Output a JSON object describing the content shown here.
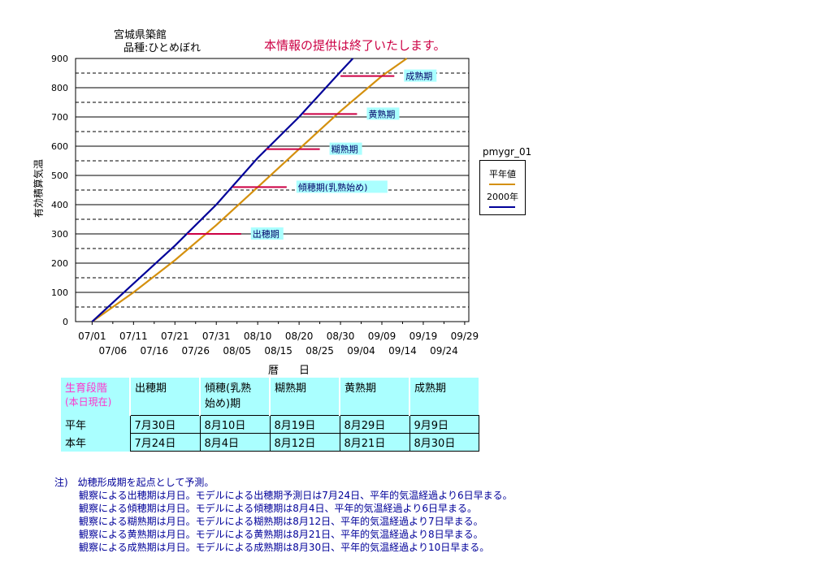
{
  "header": {
    "station": "宮城県築館",
    "variety": "品種:ひとめぼれ",
    "notice": "本情報の提供は終了いたします。"
  },
  "chart_data": {
    "type": "line",
    "title": "",
    "xlabel": "暦　日",
    "ylabel": "有効積算気温",
    "ylim": [
      0,
      900
    ],
    "yticks": [
      0,
      100,
      200,
      300,
      400,
      500,
      600,
      700,
      800,
      900
    ],
    "xlim": [
      "06/27",
      "09/30"
    ],
    "xticks_row1": [
      "07/01",
      "07/11",
      "07/21",
      "07/31",
      "08/10",
      "08/20",
      "08/30",
      "09/09",
      "09/19",
      "09/29"
    ],
    "xticks_row2": [
      "07/06",
      "07/16",
      "07/26",
      "08/05",
      "08/15",
      "08/25",
      "09/04",
      "09/14",
      "09/24"
    ],
    "grid": "dashed at 50, 150, 250, 350, 450, 550, 650, 750, 850; solid at 100s",
    "legend_title": "pmygr_01",
    "legend_position": "right",
    "series": [
      {
        "name": "平年値",
        "color": "#d4900e",
        "points": [
          [
            "07/01",
            0
          ],
          [
            "07/11",
            100
          ],
          [
            "07/21",
            210
          ],
          [
            "07/31",
            330
          ],
          [
            "08/10",
            460
          ],
          [
            "08/20",
            590
          ],
          [
            "08/30",
            720
          ],
          [
            "09/09",
            840
          ],
          [
            "09/15",
            900
          ]
        ]
      },
      {
        "name": "2000年",
        "color": "#000099",
        "points": [
          [
            "07/01",
            0
          ],
          [
            "07/11",
            130
          ],
          [
            "07/21",
            260
          ],
          [
            "07/31",
            400
          ],
          [
            "08/10",
            560
          ],
          [
            "08/20",
            700
          ],
          [
            "08/30",
            855
          ],
          [
            "09/02",
            900
          ]
        ]
      }
    ],
    "stage_markers": [
      {
        "label": "出穂期",
        "y": 300,
        "x_start": "07/24",
        "x_end": "08/06"
      },
      {
        "label": "傾穂期(乳熟始め)",
        "y": 460,
        "x_start": "08/04",
        "x_end": "08/17"
      },
      {
        "label": "糊熟期",
        "y": 590,
        "x_start": "08/12",
        "x_end": "08/25"
      },
      {
        "label": "黄熟期",
        "y": 710,
        "x_start": "08/21",
        "x_end": "09/03"
      },
      {
        "label": "成熟期",
        "y": 840,
        "x_start": "08/30",
        "x_end": "09/12"
      }
    ],
    "stage_label_bg": "#aaffff",
    "marker_color": "#cc0044"
  },
  "table": {
    "corner_line1": "生育段階",
    "corner_line2": "(本日現在)",
    "stages": [
      "出穂期",
      "傾穂(乳熟\n始め)期",
      "糊熟期",
      "黄熟期",
      "成熟期"
    ],
    "rows": [
      {
        "label": "平年",
        "values": [
          "7月30日",
          "8月10日",
          "8月19日",
          "8月29日",
          "9月9日"
        ]
      },
      {
        "label": "本年",
        "values": [
          "7月24日",
          "8月4日",
          "8月12日",
          "8月21日",
          "8月30日"
        ]
      }
    ]
  },
  "notes": {
    "lead": "注)　幼穂形成期を起点として予測。",
    "lines": [
      "観察による出穂期は月日。モデルによる出穂期予測日は7月24日、平年的気温経過より6日早まる。",
      "観察による傾穂期は月日。モデルによる傾穂期は8月4日、平年的気温経過より6日早まる。",
      "観察による糊熟期は月日。モデルによる糊熟期は8月12日、平年的気温経過より7日早まる。",
      "観察による黄熟期は月日。モデルによる黄熟期は8月21日、平年的気温経過より8日早まる。",
      "観察による成熟期は月日。モデルによる成熟期は8月30日、平年的気温経過より10日早まる。"
    ]
  }
}
